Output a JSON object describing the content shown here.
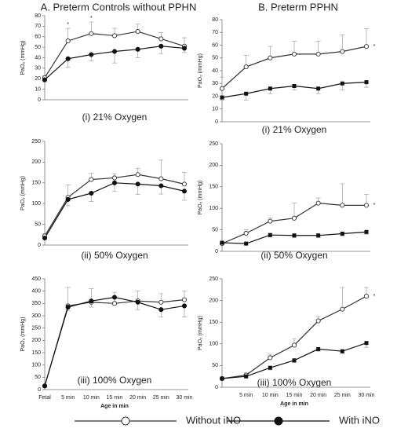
{
  "chart_data": [
    {
      "type": "line",
      "title": "A. Preterm Controls without PPHN",
      "subtitle": "(i) 21% Oxygen",
      "ylabel": "PaO₂ (mmHg)",
      "ylim": [
        0,
        80
      ],
      "yticks": [
        0,
        10,
        20,
        30,
        40,
        50,
        60,
        70,
        80
      ],
      "series": [
        {
          "name": "Without iNO",
          "color": "#333333",
          "marker": "open-circle",
          "error_side": "up",
          "values": [
            21,
            56,
            63,
            61,
            65,
            58,
            51
          ],
          "errors": [
            2,
            12,
            11,
            7,
            7,
            6,
            8
          ]
        },
        {
          "name": "With iNO",
          "color": "#111111",
          "marker": "filled-circle",
          "error_side": "down",
          "values": [
            19,
            39,
            43,
            46,
            48,
            51,
            49
          ],
          "errors": [
            2,
            8,
            6,
            11,
            8,
            7,
            4
          ]
        }
      ],
      "annotations": [
        {
          "text": "*",
          "x": 1
        },
        {
          "text": "*",
          "x": 2
        }
      ]
    },
    {
      "type": "line",
      "subtitle": "(ii) 50% Oxygen",
      "ylabel": "PaO₂ (mmHg)",
      "ylim": [
        0,
        250
      ],
      "yticks": [
        0,
        50,
        100,
        150,
        200,
        250
      ],
      "series": [
        {
          "name": "Without iNO",
          "color": "#333333",
          "marker": "open-circle",
          "error_side": "up",
          "values": [
            22,
            115,
            158,
            162,
            170,
            160,
            147
          ],
          "errors": [
            5,
            30,
            15,
            10,
            15,
            45,
            28
          ]
        },
        {
          "name": "With iNO",
          "color": "#111111",
          "marker": "filled-circle",
          "error_side": "down",
          "values": [
            17,
            110,
            125,
            150,
            147,
            143,
            130
          ],
          "errors": [
            3,
            15,
            20,
            20,
            25,
            20,
            22
          ]
        }
      ]
    },
    {
      "type": "line",
      "subtitle": "(iii) 100% Oxygen",
      "ylabel": "PaO₂ (mmHg)",
      "xlabel": "Age in min",
      "categories": [
        "Fetal",
        "5 min",
        "10 min",
        "15 min",
        "20 min",
        "25 min",
        "30 min"
      ],
      "ylim": [
        0,
        450
      ],
      "yticks": [
        0,
        50,
        100,
        150,
        200,
        250,
        300,
        350,
        400,
        450
      ],
      "series": [
        {
          "name": "Without iNO",
          "color": "#333333",
          "marker": "open-circle",
          "error_side": "up",
          "values": [
            15,
            340,
            355,
            350,
            360,
            355,
            365
          ],
          "errors": [
            3,
            75,
            55,
            45,
            40,
            35,
            35
          ]
        },
        {
          "name": "With iNO",
          "color": "#111111",
          "marker": "filled-circle",
          "error_side": "down",
          "values": [
            15,
            335,
            360,
            375,
            355,
            325,
            340
          ],
          "errors": [
            3,
            15,
            25,
            30,
            30,
            30,
            45
          ]
        }
      ]
    },
    {
      "type": "line",
      "title": "B. Preterm PPHN",
      "subtitle": "(i) 21% Oxygen",
      "ylabel": "PaO₂ (mmHg)",
      "ylim": [
        0,
        80
      ],
      "yticks": [
        0,
        10,
        20,
        30,
        40,
        50,
        60,
        70,
        80
      ],
      "series": [
        {
          "name": "Without iNO",
          "color": "#333333",
          "marker": "open-circle",
          "error_side": "up",
          "values": [
            26,
            43,
            50,
            53,
            53,
            55,
            59
          ],
          "errors": [
            9,
            9,
            9,
            10,
            10,
            13,
            14
          ]
        },
        {
          "name": "With iNO",
          "color": "#111111",
          "marker": "filled-square",
          "error_side": "down",
          "values": [
            19,
            22,
            26,
            28,
            26,
            30,
            31
          ],
          "errors": [
            2,
            5,
            4,
            3,
            4,
            5,
            4
          ]
        }
      ],
      "annotations": [
        {
          "text": "*",
          "x": 6
        }
      ]
    },
    {
      "type": "line",
      "subtitle": "(ii) 50% Oxygen",
      "ylabel": "PaO₂ (mmHg)",
      "ylim": [
        0,
        250
      ],
      "yticks": [
        0,
        50,
        100,
        150,
        200,
        250
      ],
      "series": [
        {
          "name": "Without iNO",
          "color": "#333333",
          "marker": "open-circle",
          "error_side": "up",
          "values": [
            18,
            42,
            70,
            77,
            112,
            107,
            107
          ],
          "errors": [
            5,
            8,
            8,
            35,
            12,
            50,
            25
          ]
        },
        {
          "name": "With iNO",
          "color": "#111111",
          "marker": "filled-square",
          "error_side": "down",
          "values": [
            20,
            18,
            38,
            37,
            37,
            41,
            45
          ],
          "errors": [
            3,
            3,
            5,
            5,
            5,
            5,
            5
          ]
        }
      ],
      "annotations": [
        {
          "text": "*",
          "x": 6
        }
      ]
    },
    {
      "type": "line",
      "subtitle": "(iii) 100% Oxygen",
      "ylabel": "PaO₂ (mmHg)",
      "xlabel": "Age in min",
      "categories": [
        null,
        "5 min",
        "10 min",
        "15 min",
        "20 min",
        "25 min",
        "30 min"
      ],
      "ylim": [
        0,
        250
      ],
      "yticks": [
        0,
        50,
        100,
        150,
        200,
        250
      ],
      "series": [
        {
          "name": "Without iNO",
          "color": "#333333",
          "marker": "open-circle",
          "error_side": "up",
          "values": [
            20,
            28,
            68,
            97,
            153,
            180,
            210
          ],
          "errors": [
            3,
            5,
            8,
            15,
            10,
            50,
            20
          ]
        },
        {
          "name": "With iNO",
          "color": "#111111",
          "marker": "filled-square",
          "error_side": "down",
          "values": [
            20,
            25,
            45,
            62,
            88,
            83,
            102
          ],
          "errors": [
            3,
            3,
            5,
            5,
            5,
            5,
            10
          ]
        }
      ],
      "annotations": [
        {
          "text": "*",
          "x": 6
        }
      ]
    }
  ]
}
